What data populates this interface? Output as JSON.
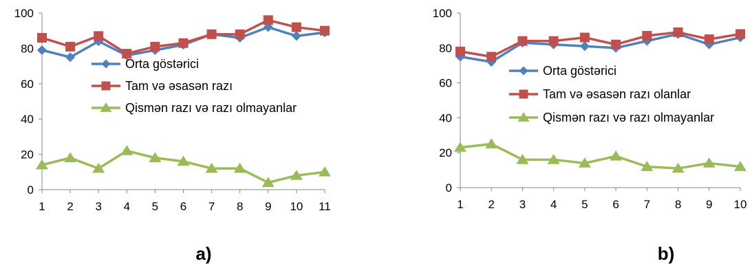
{
  "chart_data": [
    {
      "type": "line",
      "panel_label": "a)",
      "x": [
        1,
        2,
        3,
        4,
        5,
        6,
        7,
        8,
        9,
        10,
        11
      ],
      "ylim": [
        0,
        100
      ],
      "yticks": [
        0,
        20,
        40,
        60,
        80,
        100
      ],
      "grid": false,
      "legend_position": "center-left",
      "series": [
        {
          "name": "Orta göstərici",
          "color": "#4F81BD",
          "marker": "diamond",
          "values": [
            79,
            75,
            84,
            76,
            79,
            82,
            88,
            86,
            92,
            87,
            89
          ]
        },
        {
          "name": "Tam və əsasən razı",
          "color": "#C0504D",
          "marker": "square",
          "values": [
            86,
            81,
            87,
            77,
            81,
            83,
            88,
            88,
            96,
            92,
            90
          ]
        },
        {
          "name": "Qismən razı və razı olmayanlar",
          "color": "#9BBB59",
          "marker": "triangle",
          "values": [
            14,
            18,
            12,
            22,
            18,
            16,
            12,
            12,
            4,
            8,
            10
          ]
        }
      ]
    },
    {
      "type": "line",
      "panel_label": "b)",
      "x": [
        1,
        2,
        3,
        4,
        5,
        6,
        7,
        8,
        9,
        10
      ],
      "ylim": [
        0,
        100
      ],
      "yticks": [
        0,
        20,
        40,
        60,
        80,
        100
      ],
      "grid": false,
      "legend_position": "center-left",
      "series": [
        {
          "name": "Orta göstərici",
          "color": "#4F81BD",
          "marker": "diamond",
          "values": [
            75,
            72,
            83,
            82,
            81,
            80,
            84,
            88,
            82,
            86
          ]
        },
        {
          "name": "Tam və əsasən razı olanlar",
          "color": "#C0504D",
          "marker": "square",
          "values": [
            78,
            75,
            84,
            84,
            86,
            82,
            87,
            89,
            85,
            88
          ]
        },
        {
          "name": "Qismən razı və razı olmayanlar",
          "color": "#9BBB59",
          "marker": "triangle",
          "values": [
            23,
            25,
            16,
            16,
            14,
            18,
            12,
            11,
            14,
            12
          ]
        }
      ]
    }
  ]
}
